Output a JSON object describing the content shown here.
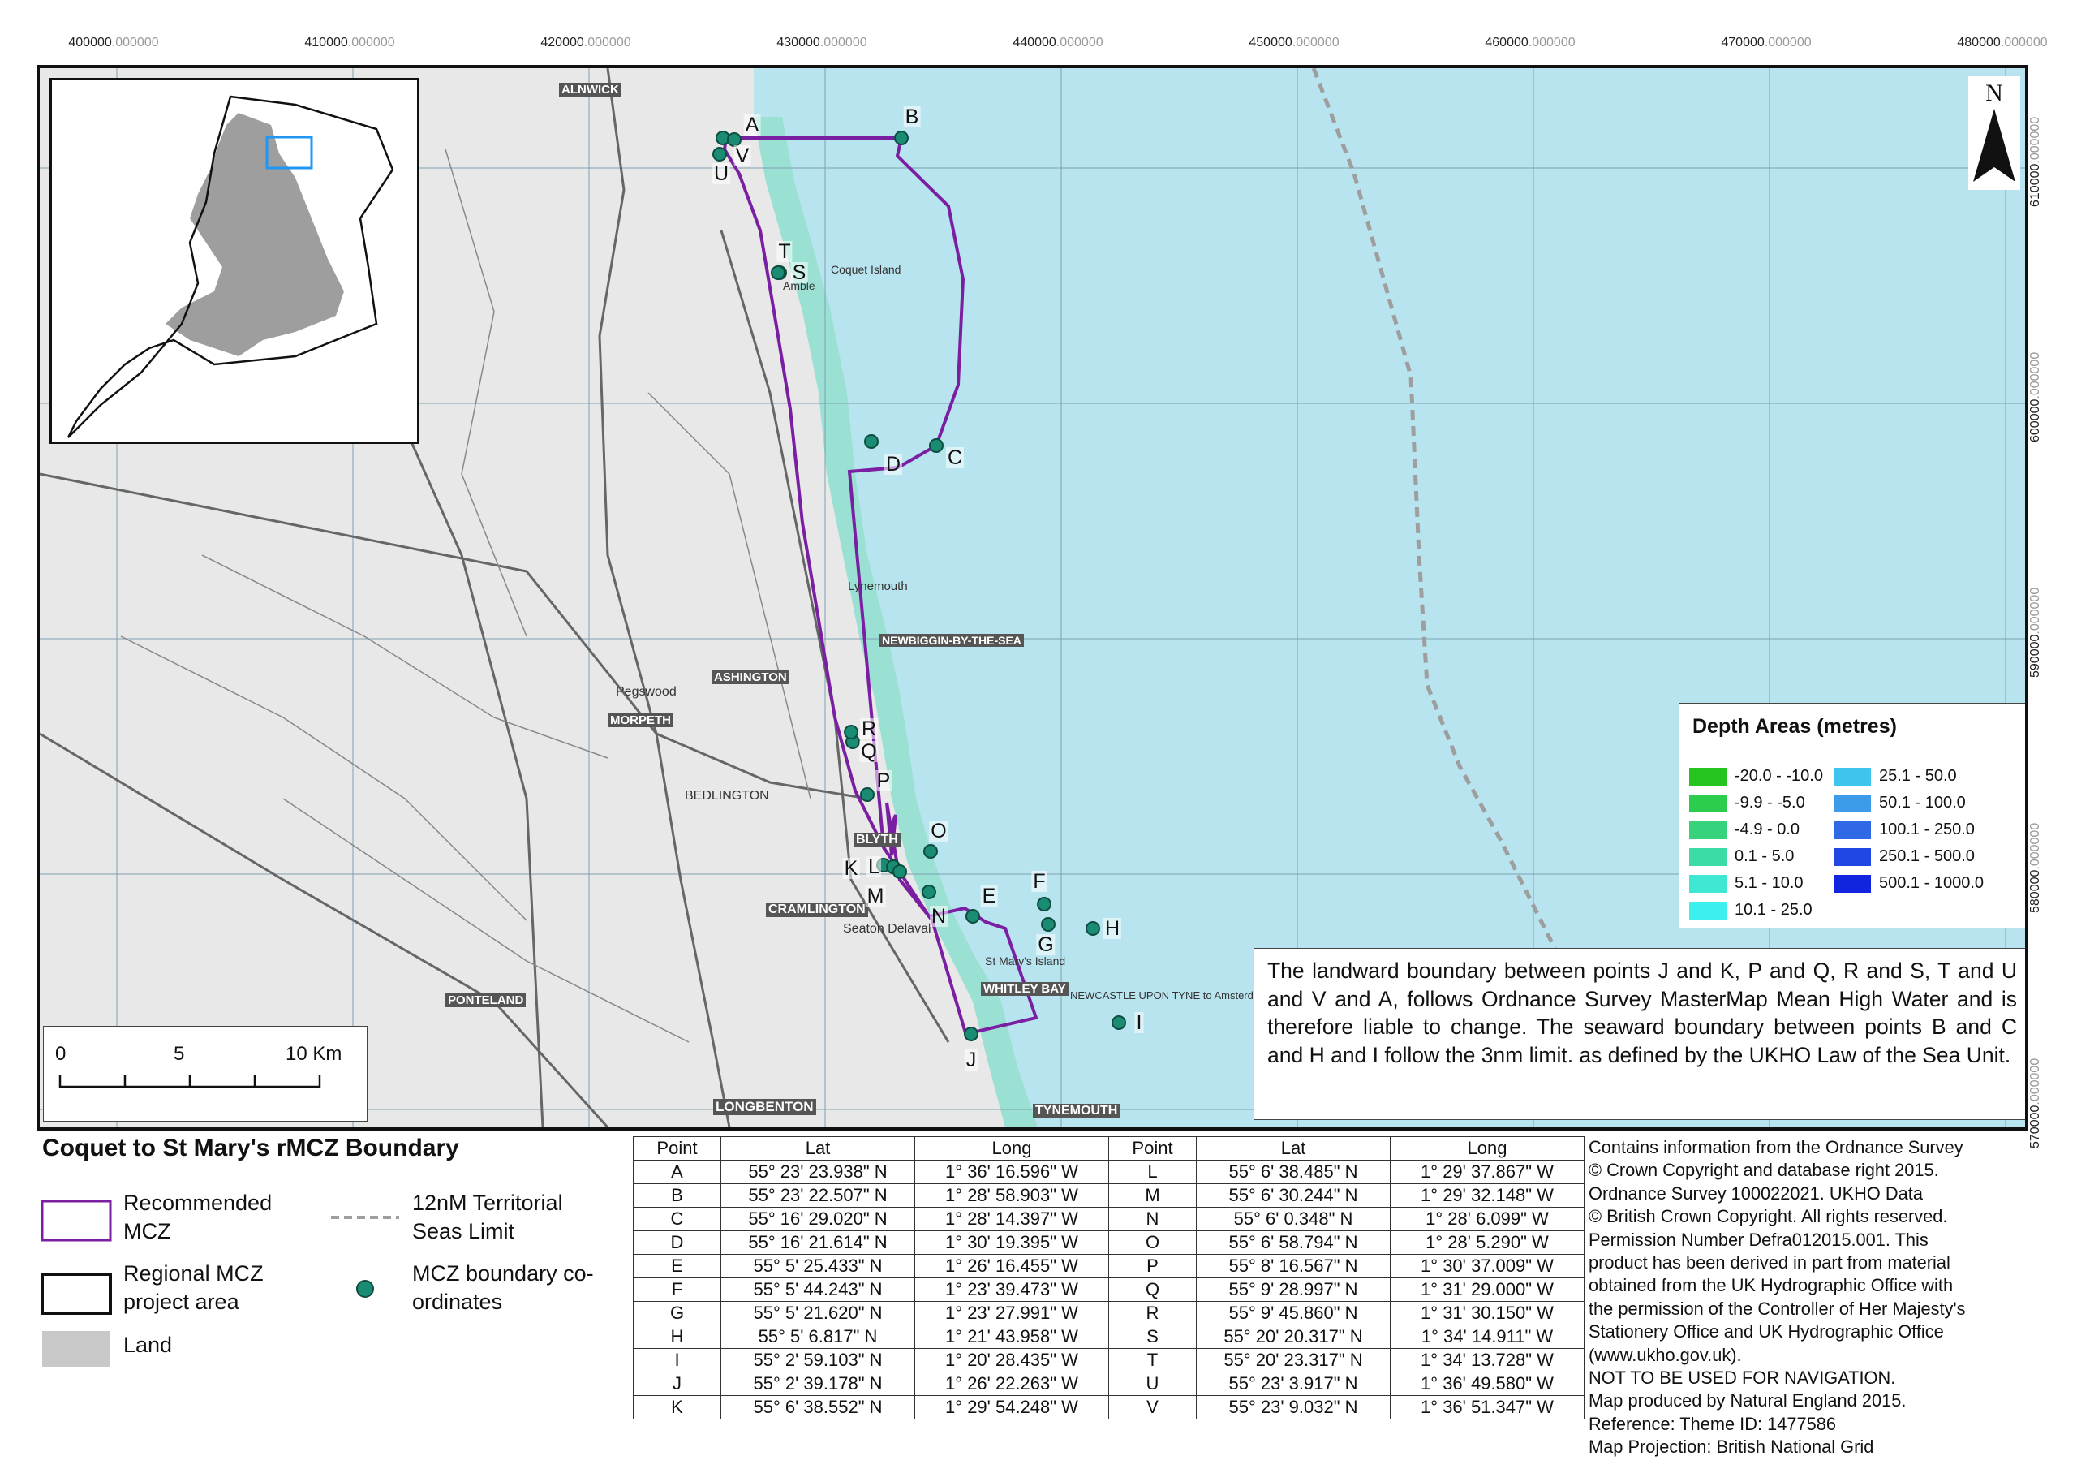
{
  "map": {
    "title": "Coquet to St Mary's rMCZ Boundary",
    "north_label": "N",
    "easting_labels": [
      {
        "main": "400000",
        "frac": ".000000"
      },
      {
        "main": "410000",
        "frac": ".000000"
      },
      {
        "main": "420000",
        "frac": ".000000"
      },
      {
        "main": "430000",
        "frac": ".000000"
      },
      {
        "main": "440000",
        "frac": ".000000"
      },
      {
        "main": "450000",
        "frac": ".000000"
      },
      {
        "main": "460000",
        "frac": ".000000"
      },
      {
        "main": "470000",
        "frac": ".000000"
      },
      {
        "main": "480000",
        "frac": ".000000"
      }
    ],
    "northing_labels": [
      {
        "main": "610000",
        "frac": ".000000"
      },
      {
        "main": "600000",
        "frac": ".000000"
      },
      {
        "main": "590000",
        "frac": ".000000"
      },
      {
        "main": "580000",
        "frac": ".000000"
      },
      {
        "main": "570000",
        "frac": ".000000"
      }
    ],
    "place_labels": [
      "ALNWICK",
      "MORPETH",
      "ASHINGTON",
      "BLYTH",
      "CRAMLINGTON",
      "PONTELAND",
      "LONGBENTON",
      "WHITLEY BAY",
      "TYNEMOUTH",
      "NEWBIGGIN-BY-THE-SEA",
      "Coquet Island",
      "St Mary's Island",
      "Lynemouth",
      "Pegswood",
      "BEDLINGTON",
      "Seaton Delaval",
      "Amble",
      "NEWCASTLE UPON TYNE to Amsterdam"
    ],
    "colors": {
      "sea": "#b7e4ee",
      "land": "#e8e8e8",
      "mcz_boundary": "#7b1fa2",
      "point_marker": "#1a8c73",
      "territorial_limit": "#9e9e9e"
    }
  },
  "scale_bar": {
    "labels": [
      "0",
      "5",
      "10 Km"
    ]
  },
  "depth_legend": {
    "title": "Depth Areas (metres)",
    "items": [
      {
        "label": "-20.0 - -10.0",
        "color": "#25c41f"
      },
      {
        "label": "-9.9 - -5.0",
        "color": "#2ccd4d"
      },
      {
        "label": "-4.9 - 0.0",
        "color": "#36d37c"
      },
      {
        "label": "0.1 - 5.0",
        "color": "#3ddca6"
      },
      {
        "label": "5.1 - 10.0",
        "color": "#3fe8d2"
      },
      {
        "label": "10.1 - 25.0",
        "color": "#3df0f0"
      },
      {
        "label": "25.1 - 50.0",
        "color": "#3fc4ee"
      },
      {
        "label": "50.1 - 100.0",
        "color": "#3e9be9"
      },
      {
        "label": "100.1 - 250.0",
        "color": "#2f69e6"
      },
      {
        "label": "250.1 - 500.0",
        "color": "#2246e4"
      },
      {
        "label": "500.1 - 1000.0",
        "color": "#1124e0"
      }
    ]
  },
  "boundary_note": "The landward boundary between points J and K, P and Q, R and S, T and U and V and A, follows Ordnance Survey MasterMap Mean High Water and is therefore liable to change. The seaward boundary between points B and C and H and I follow the 3nm limit. as defined by the UKHO Law of the Sea Unit.",
  "legend": {
    "recommended_mcz": "Recommended MCZ",
    "regional_project_area": "Regional MCZ project area",
    "land": "Land",
    "territorial_limit": "12nM Territorial Seas Limit",
    "boundary_coordinates": "MCZ boundary co-ordinates"
  },
  "table": {
    "headers": [
      "Point",
      "Lat",
      "Long",
      "Point",
      "Lat",
      "Long"
    ],
    "rows": [
      [
        "A",
        "55° 23' 23.938\" N",
        "1° 36' 16.596\" W",
        "L",
        "55° 6' 38.485\" N",
        "1° 29' 37.867\" W"
      ],
      [
        "B",
        "55° 23' 22.507\" N",
        "1° 28' 58.903\" W",
        "M",
        "55° 6' 30.244\" N",
        "1° 29' 32.148\" W"
      ],
      [
        "C",
        "55° 16' 29.020\" N",
        "1° 28' 14.397\" W",
        "N",
        "55° 6' 0.348\" N",
        "1° 28' 6.099\" W"
      ],
      [
        "D",
        "55° 16' 21.614\" N",
        "1° 30' 19.395\" W",
        "O",
        "55° 6' 58.794\" N",
        "1° 28' 5.290\" W"
      ],
      [
        "E",
        "55° 5' 25.433\" N",
        "1° 26' 16.455\" W",
        "P",
        "55° 8' 16.567\" N",
        "1° 30' 37.009\" W"
      ],
      [
        "F",
        "55° 5' 44.243\" N",
        "1° 23' 39.473\" W",
        "Q",
        "55° 9' 28.997\" N",
        "1° 31' 29.000\" W"
      ],
      [
        "G",
        "55° 5' 21.620\" N",
        "1° 23' 27.991\" W",
        "R",
        "55° 9' 45.860\" N",
        "1° 31' 30.150\" W"
      ],
      [
        "H",
        "55° 5' 6.817\" N",
        "1° 21' 43.958\" W",
        "S",
        "55° 20' 20.317\" N",
        "1° 34' 14.911\" W"
      ],
      [
        "I",
        "55° 2' 59.103\" N",
        "1° 20' 28.435\" W",
        "T",
        "55° 20' 23.317\" N",
        "1° 34' 13.728\" W"
      ],
      [
        "J",
        "55° 2' 39.178\" N",
        "1° 26' 22.263\" W",
        "U",
        "55° 23' 3.917\" N",
        "1° 36' 49.580\" W"
      ],
      [
        "K",
        "55° 6' 38.552\" N",
        "1° 29' 54.248\" W",
        "V",
        "55° 23' 9.032\" N",
        "1° 36' 51.347\" W"
      ]
    ]
  },
  "copyright_lines": [
    "Contains information from the Ordnance Survey",
    "© Crown Copyright and database right 2015.",
    "Ordnance Survey 100022021.  UKHO Data",
    "© British Crown Copyright.  All rights reserved.",
    "Permission Number Defra012015.001. This",
    "product has been derived in part from material",
    "obtained from the UK Hydrographic Office with",
    "the permission of the Controller of Her Majesty's",
    "Stationery Office and UK Hydrographic Office",
    "(www.ukho.gov.uk).",
    "NOT TO BE USED FOR NAVIGATION.",
    "Map produced by Natural England 2015.",
    "Reference: Theme ID: 1477586",
    "Map Projection: British National Grid"
  ],
  "point_labels": [
    "A",
    "B",
    "C",
    "D",
    "E",
    "F",
    "G",
    "H",
    "I",
    "J",
    "K",
    "L",
    "M",
    "N",
    "O",
    "P",
    "Q",
    "R",
    "S",
    "T",
    "U",
    "V"
  ]
}
